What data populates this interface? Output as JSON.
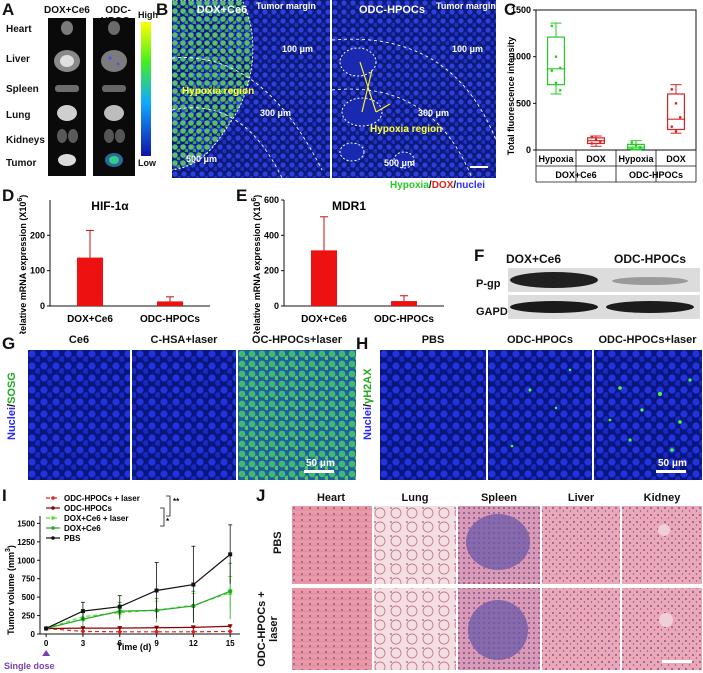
{
  "panel_letters": [
    "A",
    "B",
    "C",
    "D",
    "E",
    "F",
    "G",
    "H",
    "I",
    "J"
  ],
  "panelA": {
    "columns": [
      "DOX+Ce6",
      "ODC-HPOCs"
    ],
    "organs": [
      "Heart",
      "Liver",
      "Spleen",
      "Lung",
      "Kidneys",
      "Tumor"
    ],
    "colorbar_high": "High",
    "colorbar_low": "Low"
  },
  "panelB": {
    "titles": [
      "DOX+Ce6",
      "ODC-HPOCs"
    ],
    "tumor_margin": "Tumor margin",
    "left_labels": {
      "d100": "100 μm",
      "d300": "300 μm",
      "d500": "500 μm",
      "region": "Hypoxia region"
    },
    "right_labels": {
      "d100": "100 μm",
      "d300": "300 μm",
      "d500": "500 μm",
      "region": "Hypoxia region"
    },
    "legend": {
      "hypoxia": "Hypoxia",
      "sep1": "/",
      "dox": "DOX",
      "sep2": "/",
      "nuclei": "nuclei"
    },
    "colors": {
      "hypoxia": "#22cc22",
      "dox": "#e02020",
      "nuclei": "#2a2aff"
    }
  },
  "panelD_title": "HIF-1α",
  "panelE_title": "MDR1",
  "panelF": {
    "cols": [
      "DOX+Ce6",
      "ODC-HPOCs"
    ],
    "rows": [
      "P-gp",
      "GAPDH"
    ]
  },
  "panelG": {
    "side_label_a": "Nuclei",
    "side_label_b": "SOSG",
    "titles": [
      "Ce6",
      "C-HSA+laser",
      "OC-HPOCs+laser"
    ],
    "scale": "50 μm"
  },
  "panelH": {
    "side_label_a": "Nuclei",
    "side_label_b": "γH2AX",
    "titles": [
      "PBS",
      "ODC-HPOCs",
      "ODC-HPOCs+laser"
    ],
    "scale": "50 μm"
  },
  "panelJ": {
    "columns": [
      "Heart",
      "Lung",
      "Spleen",
      "Liver",
      "Kidney"
    ],
    "rows": [
      "PBS",
      "ODC-HPOCs + laser"
    ]
  },
  "chart_data": [
    {
      "id": "C",
      "type": "box",
      "ylabel": "Total fluorescence intensity",
      "ylim": [
        0,
        1500
      ],
      "yticks": [
        0,
        500,
        1000,
        1500
      ],
      "categories": [
        "Hypoxia",
        "DOX",
        "Hypoxia",
        "DOX"
      ],
      "groups": [
        "DOX+Ce6",
        "ODC-HPOCs"
      ],
      "colors": [
        "#22cc22",
        "#dd2222",
        "#22cc22",
        "#dd2222"
      ],
      "boxes": [
        {
          "min": 600,
          "q1": 700,
          "median": 870,
          "q3": 1210,
          "max": 1360,
          "points": [
            1330,
            1000,
            880,
            850,
            720,
            640
          ]
        },
        {
          "min": 40,
          "q1": 70,
          "median": 100,
          "q3": 130,
          "max": 150,
          "points": [
            140,
            110,
            90,
            70
          ]
        },
        {
          "min": 0,
          "q1": 10,
          "median": 30,
          "q3": 60,
          "max": 100,
          "points": [
            80,
            50,
            30,
            10
          ]
        },
        {
          "min": 180,
          "q1": 220,
          "median": 330,
          "q3": 600,
          "max": 700,
          "points": [
            650,
            500,
            350,
            250,
            200
          ]
        }
      ]
    },
    {
      "id": "D",
      "type": "bar",
      "ylabel": "Relative mRNA expression (X10",
      "ylabel_sup": "6",
      "ylabel_end": ")",
      "ylim": [
        0,
        300
      ],
      "yticks": [
        0,
        100,
        200
      ],
      "categories": [
        "DOX+Ce6",
        "ODC-HPOCs"
      ],
      "values": [
        137,
        13
      ],
      "errors": [
        77,
        13
      ],
      "color": "#ee1111"
    },
    {
      "id": "E",
      "type": "bar",
      "ylabel": "Relative mRNA expression (X10",
      "ylabel_sup": "6",
      "ylabel_end": ")",
      "ylim": [
        0,
        600
      ],
      "yticks": [
        0,
        200,
        400,
        600
      ],
      "categories": [
        "DOX+Ce6",
        "ODC-HPOCs"
      ],
      "values": [
        315,
        28
      ],
      "errors": [
        190,
        30
      ],
      "color": "#ee1111"
    },
    {
      "id": "I",
      "type": "line",
      "ylabel": "Tumor volume (mm",
      "ylabel_sup": "3",
      "ylabel_end": ")",
      "xlabel": "Time (d)",
      "x": [
        0,
        3,
        6,
        9,
        12,
        15
      ],
      "xlim": [
        -0.5,
        15.8
      ],
      "ylim": [
        0,
        1600
      ],
      "yticks": [
        0,
        250,
        500,
        750,
        1000,
        1250,
        1500
      ],
      "annotation": "Single dose",
      "sig": [
        "**",
        "*"
      ],
      "series": [
        {
          "name": "ODC-HPOCs + laser",
          "color": "#dd2222",
          "dash": "4,3",
          "marker": "diamond",
          "values": [
            75,
            35,
            30,
            30,
            30,
            35
          ],
          "err": [
            10,
            8,
            8,
            8,
            8,
            8
          ]
        },
        {
          "name": "ODC-HPOCs",
          "color": "#8b0000",
          "dash": "",
          "marker": "triangle-down",
          "values": [
            75,
            80,
            80,
            85,
            90,
            105
          ],
          "err": [
            10,
            15,
            15,
            15,
            15,
            15
          ]
        },
        {
          "name": "DOX+Ce6 + laser",
          "color": "#55dd33",
          "dash": "4,3",
          "marker": "triangle",
          "values": [
            75,
            235,
            290,
            325,
            390,
            560
          ],
          "err": [
            20,
            80,
            100,
            120,
            160,
            220
          ]
        },
        {
          "name": "DOX+Ce6",
          "color": "#22aa22",
          "dash": "",
          "marker": "circle",
          "values": [
            75,
            200,
            310,
            320,
            380,
            580
          ],
          "err": [
            20,
            100,
            120,
            160,
            200,
            380
          ]
        },
        {
          "name": "PBS",
          "color": "#111111",
          "dash": "",
          "marker": "square",
          "values": [
            75,
            310,
            370,
            590,
            670,
            1080
          ],
          "err": [
            20,
            120,
            150,
            380,
            520,
            400
          ]
        }
      ]
    }
  ]
}
